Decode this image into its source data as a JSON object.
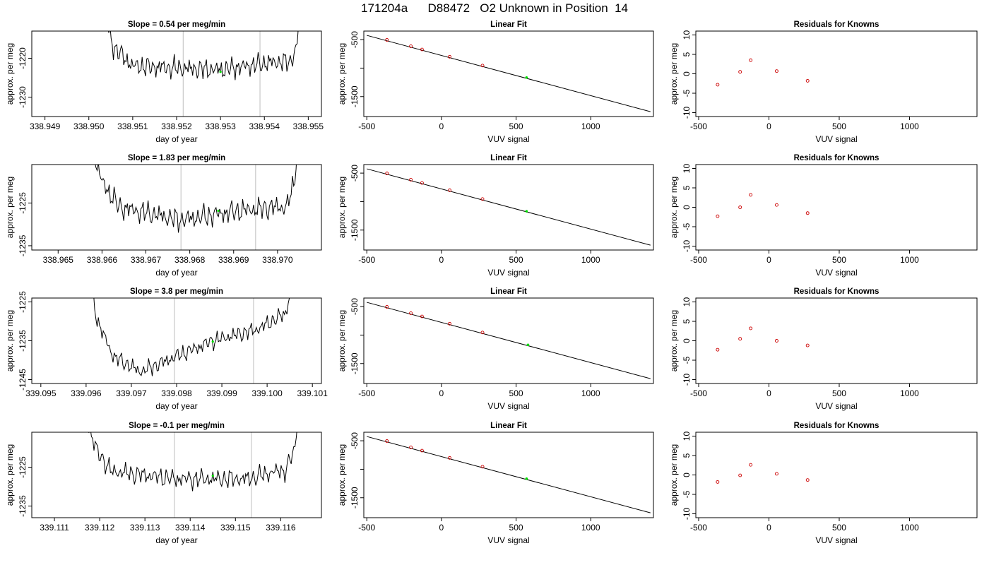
{
  "figure_title": "171204a      D88472   O2 Unknown in Position  14",
  "colors": {
    "trace": "#000000",
    "marker": "#00dd00",
    "residual": "#cc0000",
    "vline": "#c8c8c8"
  },
  "chart_data": [
    {
      "type": "line",
      "title": "Slope =  0.54  per meg/min",
      "xlabel": "day of year",
      "ylabel": "approx. per meg",
      "xlim": [
        338.9487,
        338.9553
      ],
      "ylim": [
        -1235,
        -1213
      ],
      "xticks": [
        338.949,
        338.95,
        338.951,
        338.952,
        338.953,
        338.954,
        338.955
      ],
      "xtick_labels": [
        "338.949",
        "338.950",
        "338.951",
        "338.952",
        "338.953",
        "338.954",
        "338.955"
      ],
      "yticks": [
        -1230,
        -1220
      ],
      "ytick_labels": [
        "-1230",
        "-1220"
      ],
      "vlines": [
        338.95215,
        338.9539
      ],
      "trace": {
        "x_start": 338.95035,
        "x_end": 338.9548,
        "points": 170,
        "baseline": [
          [
            338.95035,
            -1208
          ],
          [
            338.95055,
            -1217
          ],
          [
            338.951,
            -1222
          ],
          [
            338.953,
            -1223
          ],
          [
            338.9542,
            -1221
          ],
          [
            338.9546,
            -1221
          ],
          [
            338.95475,
            -1216
          ],
          [
            338.9548,
            -1208
          ]
        ],
        "amplitude": 2.8
      },
      "marker": {
        "x": 338.953,
        "y": -1223.5
      }
    },
    {
      "type": "scatter",
      "title": "Linear Fit",
      "xlabel": "VUV signal",
      "ylabel": "approx. per meg",
      "xlim": [
        -520,
        1420
      ],
      "ylim": [
        -1850,
        -350
      ],
      "xticks": [
        -500,
        0,
        500,
        1000
      ],
      "xtick_labels": [
        "-500",
        "0",
        "500",
        "1000"
      ],
      "yticks": [
        -1500,
        -1000,
        -500
      ],
      "ytick_labels": [
        "-1500",
        "",
        "-500"
      ],
      "fit": {
        "x": [
          -500,
          1400
        ],
        "y": [
          -425,
          -1765
        ]
      },
      "knowns": {
        "x": [
          -365,
          -205,
          -130,
          55,
          275
        ],
        "y": [
          -505,
          -616,
          -673,
          -801,
          -955
        ]
      },
      "unknown": {
        "x": 570,
        "y": -1165
      }
    },
    {
      "type": "scatter",
      "title": "Residuals for Knowns",
      "xlabel": "VUV signal",
      "ylabel": "approx. per meg",
      "xlim": [
        -520,
        1480
      ],
      "ylim": [
        -11,
        11
      ],
      "xticks": [
        -500,
        0,
        500,
        1000
      ],
      "xtick_labels": [
        "-500",
        "0",
        "500",
        "1000"
      ],
      "yticks": [
        -10,
        -5,
        0,
        5,
        10
      ],
      "ytick_labels": [
        "-10",
        "-5",
        "0",
        "5",
        "10"
      ],
      "points": {
        "x": [
          -365,
          -205,
          -130,
          55,
          275
        ],
        "y": [
          -2.8,
          0.5,
          3.5,
          0.7,
          -1.8
        ]
      }
    },
    {
      "type": "line",
      "title": "Slope =  1.83  per meg/min",
      "xlabel": "day of year",
      "ylabel": "approx. per meg",
      "xlim": [
        338.9644,
        338.971
      ],
      "ylim": [
        -1236,
        -1216
      ],
      "xticks": [
        338.965,
        338.966,
        338.967,
        338.968,
        338.969,
        338.97
      ],
      "xtick_labels": [
        "338.965",
        "338.966",
        "338.967",
        "338.968",
        "338.969",
        "338.970"
      ],
      "yticks": [
        -1235,
        -1225
      ],
      "ytick_labels": [
        "-1235",
        "-1225"
      ],
      "vlines": [
        338.9678,
        338.9695
      ],
      "trace": {
        "x_start": 338.96575,
        "x_end": 338.97045,
        "points": 170,
        "baseline": [
          [
            338.96575,
            -1212
          ],
          [
            338.966,
            -1220
          ],
          [
            338.9664,
            -1226
          ],
          [
            338.9678,
            -1229
          ],
          [
            338.969,
            -1227
          ],
          [
            338.9699,
            -1226
          ],
          [
            338.9702,
            -1226
          ],
          [
            338.9704,
            -1220
          ],
          [
            338.97045,
            -1212
          ]
        ],
        "amplitude": 2.8
      },
      "marker": {
        "x": 338.96865,
        "y": -1226.8
      }
    },
    {
      "type": "scatter",
      "title": "Linear Fit",
      "xlabel": "VUV signal",
      "ylabel": "approx. per meg",
      "xlim": [
        -520,
        1420
      ],
      "ylim": [
        -1850,
        -350
      ],
      "xticks": [
        -500,
        0,
        500,
        1000
      ],
      "xtick_labels": [
        "-500",
        "0",
        "500",
        "1000"
      ],
      "yticks": [
        -1500,
        -1000,
        -500
      ],
      "ytick_labels": [
        "-1500",
        "",
        "-500"
      ],
      "fit": {
        "x": [
          -500,
          1400
        ],
        "y": [
          -425,
          -1765
        ]
      },
      "knowns": {
        "x": [
          -365,
          -205,
          -130,
          55,
          275
        ],
        "y": [
          -505,
          -616,
          -673,
          -801,
          -955
        ]
      },
      "unknown": {
        "x": 570,
        "y": -1170
      }
    },
    {
      "type": "scatter",
      "title": "Residuals for Knowns",
      "xlabel": "VUV signal",
      "ylabel": "approx. per meg",
      "xlim": [
        -520,
        1480
      ],
      "ylim": [
        -11,
        11
      ],
      "xticks": [
        -500,
        0,
        500,
        1000
      ],
      "xtick_labels": [
        "-500",
        "0",
        "500",
        "1000"
      ],
      "yticks": [
        -10,
        -5,
        0,
        5,
        10
      ],
      "ytick_labels": [
        "-10",
        "-5",
        "0",
        "5",
        "10"
      ],
      "points": {
        "x": [
          -365,
          -205,
          -130,
          55,
          275
        ],
        "y": [
          -2.3,
          0.0,
          3.2,
          0.6,
          -1.5
        ]
      }
    },
    {
      "type": "line",
      "title": "Slope =  3.8  per meg/min",
      "xlabel": "day of year",
      "ylabel": "approx. per meg",
      "xlim": [
        339.0948,
        339.1012
      ],
      "ylim": [
        -1246,
        -1224
      ],
      "xticks": [
        339.095,
        339.096,
        339.097,
        339.098,
        339.099,
        339.1,
        339.101
      ],
      "xtick_labels": [
        "339.095",
        "339.096",
        "339.097",
        "339.098",
        "339.099",
        "339.100",
        "339.101"
      ],
      "yticks": [
        -1245,
        -1235,
        -1225
      ],
      "ytick_labels": [
        "-1245",
        "-1235",
        "-1225"
      ],
      "vlines": [
        339.09795,
        339.0997
      ],
      "trace": {
        "x_start": 339.096,
        "x_end": 339.1006,
        "points": 170,
        "baseline": [
          [
            339.096,
            -1214
          ],
          [
            339.09625,
            -1230
          ],
          [
            339.0966,
            -1239
          ],
          [
            339.0972,
            -1243
          ],
          [
            339.0978,
            -1240
          ],
          [
            339.0988,
            -1235
          ],
          [
            339.0998,
            -1232
          ],
          [
            339.1004,
            -1228
          ],
          [
            339.1006,
            -1220
          ]
        ],
        "amplitude": 2.2
      },
      "marker": {
        "x": 339.0988,
        "y": -1235.2
      }
    },
    {
      "type": "scatter",
      "title": "Linear Fit",
      "xlabel": "VUV signal",
      "ylabel": "approx. per meg",
      "xlim": [
        -520,
        1420
      ],
      "ylim": [
        -1850,
        -350
      ],
      "xticks": [
        -500,
        0,
        500,
        1000
      ],
      "xtick_labels": [
        "-500",
        "0",
        "500",
        "1000"
      ],
      "yticks": [
        -1500,
        -1000,
        -500
      ],
      "ytick_labels": [
        "-1500",
        "",
        "-500"
      ],
      "fit": {
        "x": [
          -500,
          1400
        ],
        "y": [
          -425,
          -1765
        ]
      },
      "knowns": {
        "x": [
          -365,
          -205,
          -130,
          55,
          275
        ],
        "y": [
          -505,
          -616,
          -673,
          -801,
          -955
        ]
      },
      "unknown": {
        "x": 580,
        "y": -1172
      }
    },
    {
      "type": "scatter",
      "title": "Residuals for Knowns",
      "xlabel": "VUV signal",
      "ylabel": "approx. per meg",
      "xlim": [
        -520,
        1480
      ],
      "ylim": [
        -11,
        11
      ],
      "xticks": [
        -500,
        0,
        500,
        1000
      ],
      "xtick_labels": [
        "-500",
        "0",
        "500",
        "1000"
      ],
      "yticks": [
        -10,
        -5,
        0,
        5,
        10
      ],
      "ytick_labels": [
        "-10",
        "-5",
        "0",
        "5",
        "10"
      ],
      "points": {
        "x": [
          -365,
          -205,
          -130,
          55,
          275
        ],
        "y": [
          -2.3,
          0.5,
          3.2,
          0.0,
          -1.2
        ]
      }
    },
    {
      "type": "line",
      "title": "Slope =  -0.1  per meg/min",
      "xlabel": "day of year",
      "ylabel": "approx. per meg",
      "xlim": [
        339.1105,
        339.1169
      ],
      "ylim": [
        -1238,
        -1216
      ],
      "xticks": [
        339.111,
        339.112,
        339.113,
        339.114,
        339.115,
        339.116
      ],
      "xtick_labels": [
        "339.111",
        "339.112",
        "339.113",
        "339.114",
        "339.115",
        "339.116"
      ],
      "yticks": [
        -1235,
        -1225
      ],
      "ytick_labels": [
        "-1235",
        "-1225"
      ],
      "vlines": [
        339.11365,
        339.11535
      ],
      "trace": {
        "x_start": 339.11165,
        "x_end": 339.1164,
        "points": 170,
        "baseline": [
          [
            339.11165,
            -1210
          ],
          [
            339.1119,
            -1220
          ],
          [
            339.11225,
            -1226
          ],
          [
            339.11365,
            -1228
          ],
          [
            339.1153,
            -1228
          ],
          [
            339.1159,
            -1226
          ],
          [
            339.1161,
            -1226
          ],
          [
            339.11632,
            -1220
          ],
          [
            339.1164,
            -1210
          ]
        ],
        "amplitude": 2.6
      },
      "marker": {
        "x": 339.1145,
        "y": -1227.2
      }
    },
    {
      "type": "scatter",
      "title": "Linear Fit",
      "xlabel": "VUV signal",
      "ylabel": "approx. per meg",
      "xlim": [
        -520,
        1420
      ],
      "ylim": [
        -1850,
        -350
      ],
      "xticks": [
        -500,
        0,
        500,
        1000
      ],
      "xtick_labels": [
        "-500",
        "0",
        "500",
        "1000"
      ],
      "yticks": [
        -1500,
        -1000,
        -500
      ],
      "ytick_labels": [
        "-1500",
        "",
        "-500"
      ],
      "fit": {
        "x": [
          -500,
          1400
        ],
        "y": [
          -425,
          -1765
        ]
      },
      "knowns": {
        "x": [
          -365,
          -205,
          -130,
          55,
          275
        ],
        "y": [
          -505,
          -616,
          -673,
          -801,
          -955
        ]
      },
      "unknown": {
        "x": 570,
        "y": -1165
      }
    },
    {
      "type": "scatter",
      "title": "Residuals for Knowns",
      "xlabel": "VUV signal",
      "ylabel": "approx. per meg",
      "xlim": [
        -520,
        1480
      ],
      "ylim": [
        -11,
        11
      ],
      "xticks": [
        -500,
        0,
        500,
        1000
      ],
      "xtick_labels": [
        "-500",
        "0",
        "500",
        "1000"
      ],
      "yticks": [
        -10,
        -5,
        0,
        5,
        10
      ],
      "ytick_labels": [
        "-10",
        "-5",
        "0",
        "5",
        "10"
      ],
      "points": {
        "x": [
          -365,
          -205,
          -130,
          55,
          275
        ],
        "y": [
          -1.8,
          -0.1,
          2.6,
          0.3,
          -1.3
        ]
      }
    }
  ]
}
